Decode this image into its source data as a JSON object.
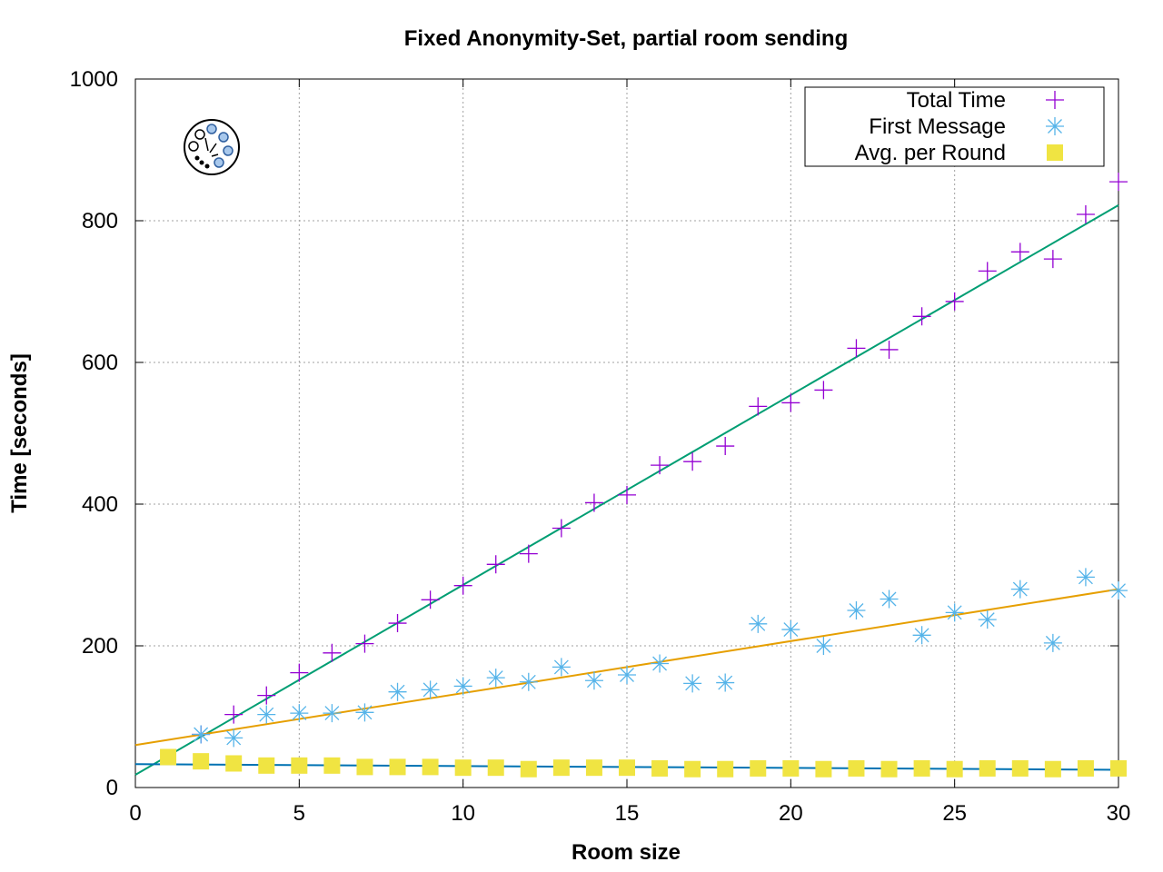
{
  "chart_data": {
    "type": "scatter",
    "title": "Fixed Anonymity-Set, partial room sending",
    "xlabel": "Room size",
    "ylabel": "Time [seconds]",
    "xlim": [
      0,
      30
    ],
    "ylim": [
      0,
      1000
    ],
    "xticks": [
      "0",
      "5",
      "10",
      "15",
      "20",
      "25",
      "30"
    ],
    "yticks": [
      "0",
      "200",
      "400",
      "600",
      "800",
      "1000"
    ],
    "grid": true,
    "legend_position": "top-right",
    "series": [
      {
        "name": "Total Time",
        "marker": "plus",
        "color": "#9400d3",
        "x": [
          2,
          3,
          4,
          5,
          6,
          7,
          8,
          9,
          10,
          11,
          12,
          13,
          14,
          15,
          16,
          17,
          18,
          19,
          20,
          21,
          22,
          23,
          24,
          25,
          26,
          27,
          28,
          29,
          30
        ],
        "values": [
          75,
          103,
          130,
          162,
          190,
          203,
          232,
          265,
          285,
          315,
          330,
          366,
          402,
          413,
          455,
          460,
          482,
          538,
          543,
          561,
          620,
          618,
          665,
          686,
          729,
          756,
          746,
          809,
          855
        ],
        "fit": {
          "color": "#009e73",
          "start": [
            0,
            18
          ],
          "end": [
            30,
            822
          ]
        }
      },
      {
        "name": "First Message",
        "marker": "star",
        "color": "#56b4e9",
        "x": [
          2,
          3,
          4,
          5,
          6,
          7,
          8,
          9,
          10,
          11,
          12,
          13,
          14,
          15,
          16,
          17,
          18,
          19,
          20,
          21,
          22,
          23,
          24,
          25,
          26,
          27,
          28,
          29,
          30
        ],
        "values": [
          75,
          70,
          103,
          105,
          105,
          106,
          135,
          138,
          143,
          155,
          149,
          170,
          151,
          159,
          175,
          147,
          148,
          231,
          223,
          200,
          250,
          266,
          215,
          247,
          237,
          280,
          204,
          297,
          278
        ],
        "fit": {
          "color": "#e69f00",
          "start": [
            0,
            60
          ],
          "end": [
            30,
            280
          ]
        }
      },
      {
        "name": "Avg. per Round",
        "marker": "square",
        "color": "#f0e442",
        "x": [
          1,
          2,
          3,
          4,
          5,
          6,
          7,
          8,
          9,
          10,
          11,
          12,
          13,
          14,
          15,
          16,
          17,
          18,
          19,
          20,
          21,
          22,
          23,
          24,
          25,
          26,
          27,
          28,
          29,
          30
        ],
        "values": [
          43,
          37,
          34,
          31,
          31,
          31,
          29,
          29,
          29,
          28,
          28,
          26,
          28,
          28,
          28,
          27,
          26,
          26,
          27,
          27,
          26,
          27,
          26,
          27,
          26,
          27,
          27,
          26,
          27,
          27
        ],
        "fit": {
          "color": "#0072b2",
          "start": [
            0,
            33
          ],
          "end": [
            30,
            25
          ]
        }
      }
    ]
  },
  "logo": {
    "name": "room-logo-icon"
  }
}
